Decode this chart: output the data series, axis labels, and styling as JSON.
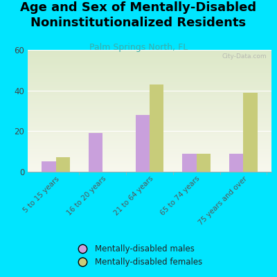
{
  "title": "Age and Sex of Mentally-Disabled\nNoninstitutionalized Residents",
  "subtitle": "Palm Springs North, FL",
  "categories": [
    "5 to 15 years",
    "16 to 20 years",
    "21 to 64 years",
    "65 to 74 years",
    "75 years and over"
  ],
  "males": [
    5,
    19,
    28,
    9,
    9
  ],
  "females": [
    7,
    0,
    43,
    9,
    39
  ],
  "male_color": "#c9a0dc",
  "female_color": "#c8cc7a",
  "background_color": "#00e5ff",
  "ylim": [
    0,
    60
  ],
  "yticks": [
    0,
    20,
    40,
    60
  ],
  "watermark": "City-Data.com",
  "legend_male": "Mentally-disabled males",
  "legend_female": "Mentally-disabled females",
  "title_fontsize": 13,
  "subtitle_fontsize": 9,
  "subtitle_color": "#3aacaa",
  "bar_width": 0.3
}
